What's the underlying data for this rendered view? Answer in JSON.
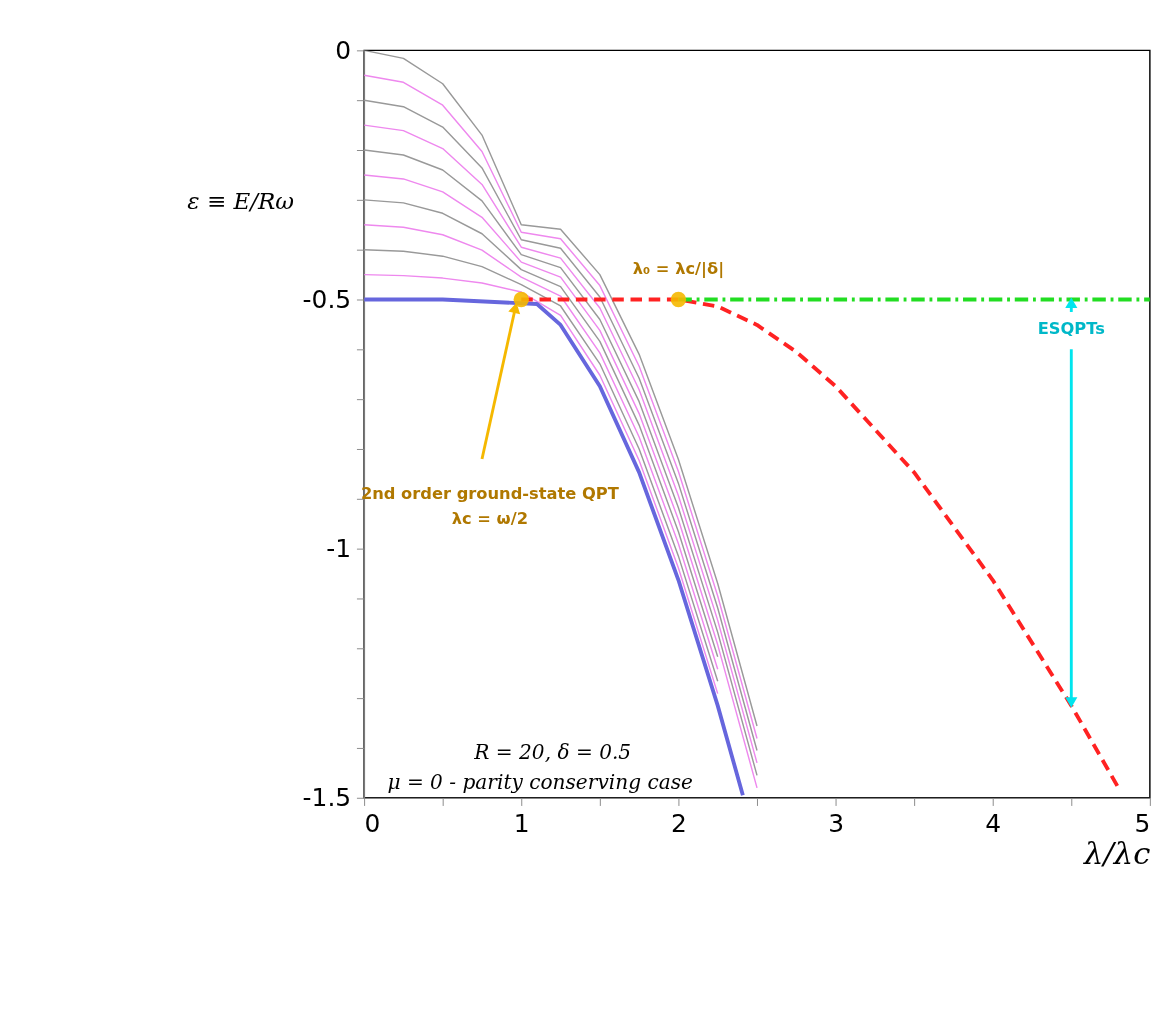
{
  "chart_data": {
    "type": "line",
    "xlabel": "λ/λc",
    "ylabel": "ε ≡ E/Rω",
    "x": [
      0,
      0.25,
      0.5,
      0.75,
      1,
      1.25,
      1.5,
      1.75,
      2,
      2.25,
      2.5
    ],
    "xlim": [
      0,
      5
    ],
    "ylim": [
      -1.5,
      0
    ],
    "xticks": [
      0,
      {
        "value": 0.5,
        "label": null
      },
      1,
      {
        "value": 1.5,
        "label": null
      },
      2,
      {
        "value": 2.5,
        "label": null
      },
      3,
      {
        "value": 3.5,
        "label": null
      },
      4,
      {
        "value": 4.5,
        "label": null
      },
      5
    ],
    "yticks": [
      0,
      {
        "value": -0.1,
        "label": null
      },
      {
        "value": -0.2,
        "label": null
      },
      {
        "value": -0.3,
        "label": null
      },
      {
        "value": -0.4,
        "label": null
      },
      -0.5,
      {
        "value": -0.6,
        "label": null
      },
      {
        "value": -0.7,
        "label": null
      },
      {
        "value": -0.8,
        "label": null
      },
      {
        "value": -0.9,
        "label": null
      },
      -1,
      {
        "value": -1.1,
        "label": null
      },
      {
        "value": -1.2,
        "label": null
      },
      {
        "value": -1.3,
        "label": null
      },
      {
        "value": -1.4,
        "label": null
      },
      -1.5
    ],
    "grid": false,
    "marker": "none",
    "line_style": "solid",
    "series": [
      {
        "color": "#ee88ee",
        "values": [
          -0.45,
          -0.452,
          -0.457,
          -0.467,
          -0.485,
          -0.532,
          -0.652,
          -0.823,
          -1.039,
          -1.291,
          null
        ]
      },
      {
        "color": "#999999",
        "values": [
          -0.4,
          -0.403,
          -0.413,
          -0.434,
          -0.47,
          -0.513,
          -0.629,
          -0.8,
          -1.015,
          -1.266,
          null
        ]
      },
      {
        "color": "#ee88ee",
        "values": [
          -0.35,
          -0.355,
          -0.37,
          -0.401,
          -0.455,
          -0.493,
          -0.607,
          -0.776,
          -0.99,
          -1.242,
          null
        ]
      },
      {
        "color": "#999999",
        "values": [
          -0.3,
          -0.306,
          -0.327,
          -0.368,
          -0.44,
          -0.474,
          -0.584,
          -0.752,
          -0.966,
          -1.217,
          null
        ]
      },
      {
        "color": "#ee88ee",
        "values": [
          -0.25,
          -0.258,
          -0.284,
          -0.335,
          -0.425,
          -0.455,
          -0.562,
          -0.729,
          -0.942,
          -1.193,
          -1.48
        ]
      },
      {
        "color": "#999999",
        "values": [
          -0.2,
          -0.21,
          -0.24,
          -0.302,
          -0.41,
          -0.436,
          -0.54,
          -0.705,
          -0.918,
          -1.168,
          -1.455
        ]
      },
      {
        "color": "#ee88ee",
        "values": [
          -0.15,
          -0.161,
          -0.197,
          -0.269,
          -0.395,
          -0.417,
          -0.517,
          -0.681,
          -0.894,
          -1.144,
          -1.43
        ]
      },
      {
        "color": "#999999",
        "values": [
          -0.1,
          -0.113,
          -0.154,
          -0.236,
          -0.38,
          -0.397,
          -0.495,
          -0.658,
          -0.869,
          -1.119,
          -1.405
        ]
      },
      {
        "color": "#ee88ee",
        "values": [
          -0.05,
          -0.064,
          -0.11,
          -0.203,
          -0.365,
          -0.378,
          -0.472,
          -0.634,
          -0.845,
          -1.095,
          -1.381
        ]
      },
      {
        "color": "#999999",
        "values": [
          0,
          -0.016,
          -0.067,
          -0.17,
          -0.35,
          -0.359,
          -0.45,
          -0.61,
          -0.821,
          -1.07,
          -1.356
        ]
      },
      {
        "color": "#6666dd",
        "x": [
          0,
          0.5,
          1,
          1.1,
          1.25,
          1.5,
          1.75,
          2,
          2.25,
          2.41
        ],
        "values": [
          -0.5,
          -0.5,
          null,
          -0.509,
          -0.551,
          -0.674,
          -0.847,
          -1.063,
          -1.315,
          -1.495
        ]
      },
      {
        "color": "#ff2222",
        "line_style": "dashed",
        "x": [
          1,
          1.5,
          2,
          2.25,
          2.5,
          2.75,
          3,
          3.5,
          4,
          4.5,
          4.8
        ],
        "values": [
          -0.5,
          -0.5,
          -0.5,
          -0.514,
          -0.551,
          -0.605,
          -0.674,
          -0.847,
          -1.063,
          -1.315,
          -1.48
        ]
      },
      {
        "color": "#22dd22",
        "line_style": "dotted",
        "x": [
          2,
          5
        ],
        "values": [
          -0.5,
          -0.5
        ]
      },
      {
        "type": "scatter",
        "marker": "circle",
        "color": "#f5b800",
        "x": [
          1,
          2
        ],
        "values": [
          -0.5,
          -0.5
        ]
      }
    ],
    "annotations": [
      "2nd order ground-state QPT\nλc = ω/2",
      {
        "text": "λ₀ = λc/|δ|",
        "x": 2,
        "y": -0.5
      },
      {
        "text": "ESQPTs",
        "x": 4.5,
        "y": -0.5
      },
      "R = 20, δ = 0.5",
      "μ = 0 - parity conserving case"
    ]
  }
}
